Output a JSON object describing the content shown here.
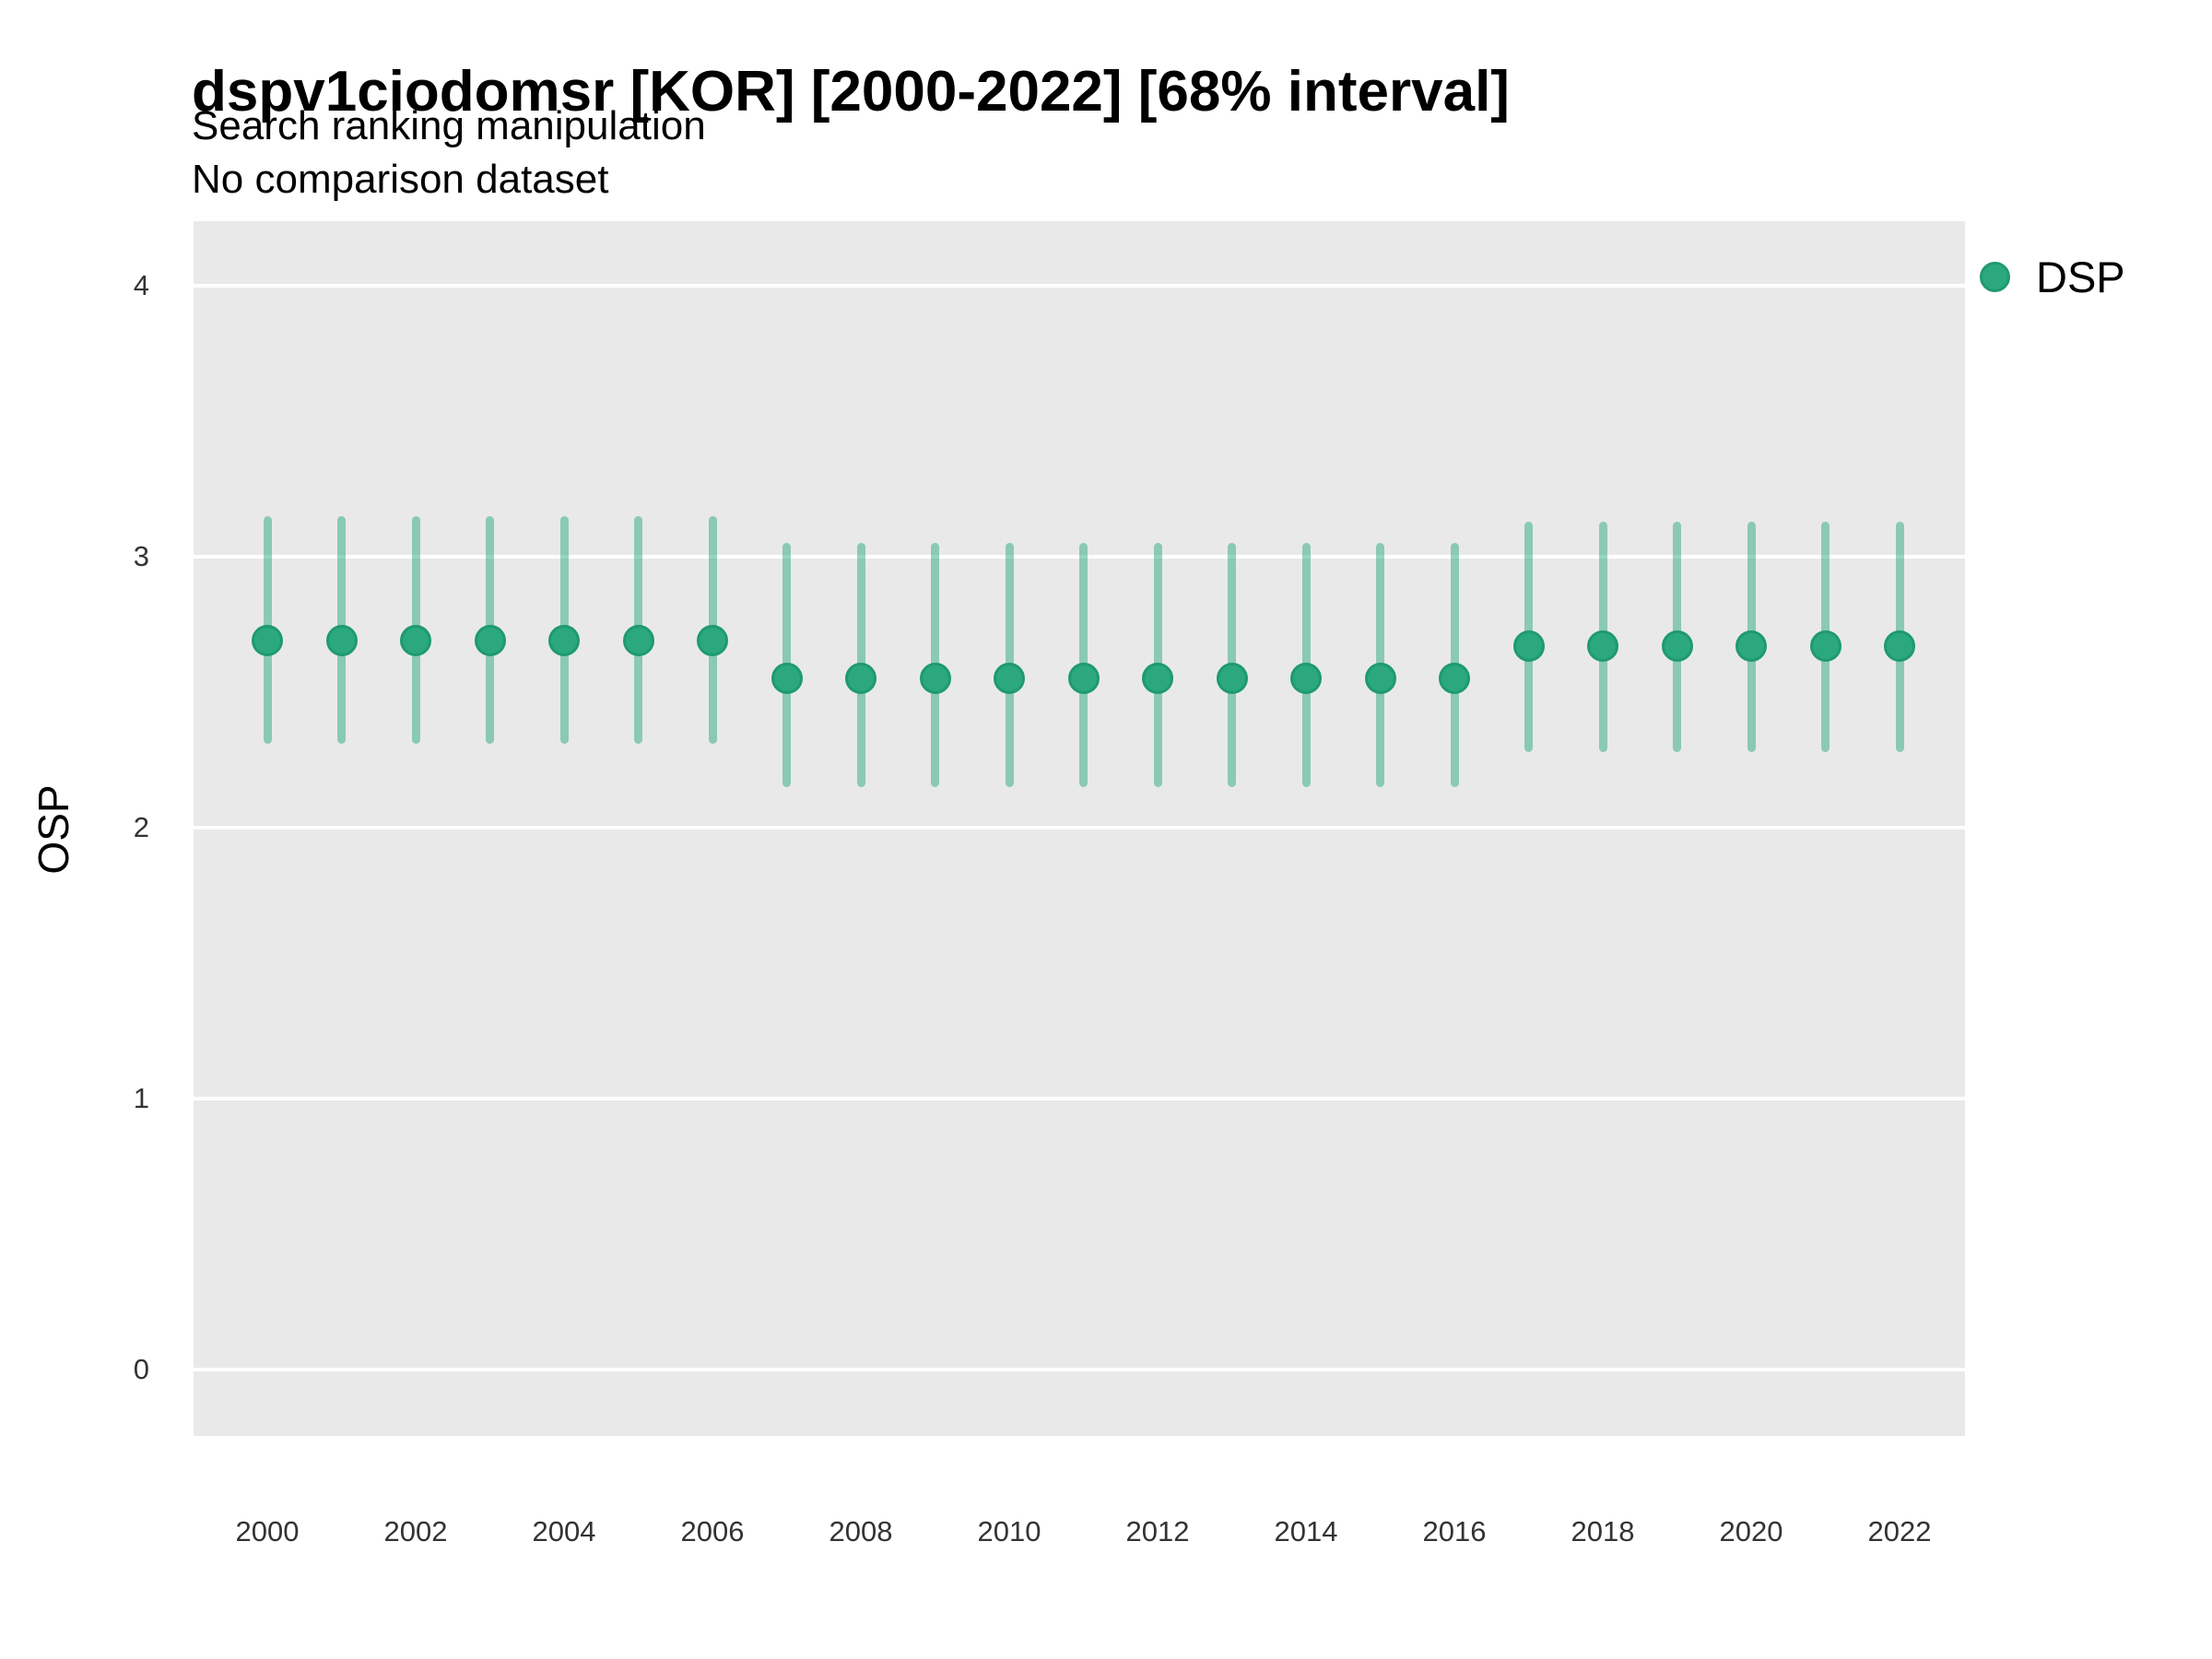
{
  "header": {
    "title": "dspv1ciodomsr [KOR] [2000-2022] [68% interval]",
    "subtitle": "Search ranking manipulation",
    "note": "No comparison dataset"
  },
  "legend": {
    "label": "DSP"
  },
  "y_axis": {
    "label": "OSP",
    "ticks": [
      0,
      1,
      2,
      3,
      4
    ]
  },
  "x_axis": {
    "ticks": [
      2000,
      2002,
      2004,
      2006,
      2008,
      2010,
      2012,
      2014,
      2016,
      2018,
      2020,
      2022
    ]
  },
  "colors": {
    "point_fill": "#2ca87e",
    "point_border": "#1f9a6e",
    "interval_bar": "rgba(44,169,129,0.5)",
    "panel_background": "#e9e9e9",
    "gridline": "#ffffff"
  },
  "chart_data": {
    "type": "scatter",
    "subtype": "pointrange",
    "title": "dspv1ciodomsr [KOR] [2000-2022] [68% interval]",
    "subtitle": "Search ranking manipulation",
    "note": "No comparison dataset",
    "xlabel": "",
    "ylabel": "OSP",
    "ylim": [
      -0.24,
      4.24
    ],
    "y_ticks": [
      0,
      1,
      2,
      3,
      4
    ],
    "x_ticks": [
      2000,
      2002,
      2004,
      2006,
      2008,
      2010,
      2012,
      2014,
      2016,
      2018,
      2020,
      2022
    ],
    "grid": "major-horizontal-white-on-gray",
    "legend_position": "right-top",
    "interval": "68%",
    "series": [
      {
        "name": "DSP",
        "x": [
          2000,
          2001,
          2002,
          2003,
          2004,
          2005,
          2006,
          2007,
          2008,
          2009,
          2010,
          2011,
          2012,
          2013,
          2014,
          2015,
          2016,
          2017,
          2018,
          2019,
          2020,
          2021,
          2022
        ],
        "y": [
          2.69,
          2.69,
          2.69,
          2.69,
          2.69,
          2.69,
          2.69,
          2.55,
          2.55,
          2.55,
          2.55,
          2.55,
          2.55,
          2.55,
          2.55,
          2.55,
          2.55,
          2.67,
          2.67,
          2.67,
          2.67,
          2.67,
          2.67
        ],
        "y_lo": [
          2.31,
          2.31,
          2.31,
          2.31,
          2.31,
          2.31,
          2.31,
          2.15,
          2.15,
          2.15,
          2.15,
          2.15,
          2.15,
          2.15,
          2.15,
          2.15,
          2.15,
          2.28,
          2.28,
          2.28,
          2.28,
          2.28,
          2.28
        ],
        "y_hi": [
          3.15,
          3.15,
          3.15,
          3.15,
          3.15,
          3.15,
          3.15,
          3.05,
          3.05,
          3.05,
          3.05,
          3.05,
          3.05,
          3.05,
          3.05,
          3.05,
          3.05,
          3.13,
          3.13,
          3.13,
          3.13,
          3.13,
          3.13
        ]
      }
    ]
  }
}
